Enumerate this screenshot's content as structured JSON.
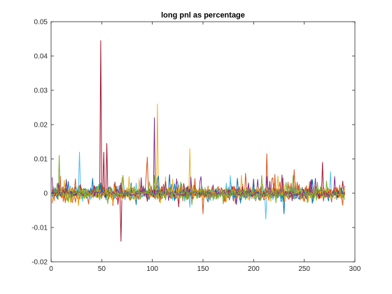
{
  "chart_data": {
    "type": "line",
    "title": "long pnl as percentage",
    "xlabel": "",
    "ylabel": "",
    "xlim": [
      0,
      300
    ],
    "ylim": [
      -0.02,
      0.05
    ],
    "x_ticks": [
      0,
      50,
      100,
      150,
      200,
      250,
      300
    ],
    "x_tick_labels": [
      "0",
      "50",
      "100",
      "150",
      "200",
      "250",
      "300"
    ],
    "y_ticks": [
      -0.02,
      -0.01,
      0,
      0.01,
      0.02,
      0.03,
      0.04,
      0.05
    ],
    "y_tick_labels": [
      "-0.02",
      "-0.01",
      "0",
      "0.01",
      "0.02",
      "0.03",
      "0.04",
      "0.05"
    ],
    "grid": false,
    "x_range": [
      1,
      290
    ],
    "series_count": 12,
    "series_colors": [
      "#0072BD",
      "#D95319",
      "#EDB120",
      "#7E2F8E",
      "#77AC30",
      "#4DBEEE",
      "#A2142F",
      "#0072BD",
      "#D95319",
      "#EDB120",
      "#7E2F8E",
      "#77AC30"
    ],
    "peaks": [
      {
        "x": 8,
        "y": 0.011,
        "series": 4
      },
      {
        "x": 28,
        "y": 0.012,
        "series": 5
      },
      {
        "x": 49,
        "y": 0.0445,
        "series": 6
      },
      {
        "x": 52,
        "y": 0.012,
        "series": 6
      },
      {
        "x": 55,
        "y": 0.0145,
        "series": 6
      },
      {
        "x": 69,
        "y": -0.014,
        "series": 6
      },
      {
        "x": 95,
        "y": 0.0105,
        "series": 8
      },
      {
        "x": 102,
        "y": 0.022,
        "series": 3
      },
      {
        "x": 105,
        "y": 0.026,
        "series": 2
      },
      {
        "x": 137,
        "y": 0.013,
        "series": 2
      },
      {
        "x": 213,
        "y": 0.0115,
        "series": 1
      },
      {
        "x": 212,
        "y": -0.0075,
        "series": 5
      },
      {
        "x": 268,
        "y": 0.009,
        "series": 6
      },
      {
        "x": 150,
        "y": -0.006,
        "series": 1
      },
      {
        "x": 230,
        "y": -0.006,
        "series": 7
      }
    ]
  }
}
